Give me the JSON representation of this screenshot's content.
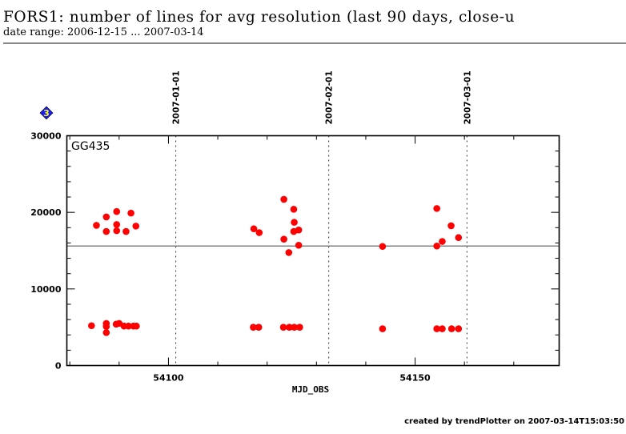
{
  "header": {
    "title": "FORS1: number of lines for avg resolution (last 90 days, close-u",
    "subtitle": "date range: 2006-12-15 ... 2007-03-14"
  },
  "badge": {
    "icon": "blue-diamond-icon",
    "label": "3",
    "fill": "#1a1aff",
    "text_color": "#ffff00"
  },
  "footer": {
    "text": "created by trendPlotter on 2007-03-14T15:03:50"
  },
  "chart_data": {
    "type": "scatter",
    "title": "FORS1: number of lines for avg resolution (last 90 days, close-u",
    "xlabel": "MJD_OBS",
    "ylabel": "",
    "xlim": [
      54079.4,
      54179.2
    ],
    "ylim": [
      0,
      30000
    ],
    "x_ticks": [
      54100,
      54150
    ],
    "x_tick_labels": [
      "54100",
      "54150"
    ],
    "x_minor_step": 10,
    "y_ticks": [
      0,
      10000,
      20000,
      30000
    ],
    "y_tick_labels": [
      "0",
      "10000",
      "20000",
      "30000"
    ],
    "y_minor_step": 2000,
    "grid": false,
    "legend": "top-left",
    "series_label": "GG435",
    "point_color": "#ff0000",
    "reference_line": {
      "y": 15600,
      "color": "#808080"
    },
    "date_markers": [
      {
        "label": "2007-01-01",
        "x": 54101.5
      },
      {
        "label": "2007-02-01",
        "x": 54132.5
      },
      {
        "label": "2007-03-01",
        "x": 54160.5
      }
    ],
    "series": [
      {
        "name": "GG435",
        "points": [
          [
            54085.4,
            18300
          ],
          [
            54087.4,
            19400
          ],
          [
            54087.4,
            17500
          ],
          [
            54089.5,
            20100
          ],
          [
            54089.5,
            18400
          ],
          [
            54089.5,
            17600
          ],
          [
            54091.4,
            17500
          ],
          [
            54092.4,
            19900
          ],
          [
            54093.4,
            18200
          ],
          [
            54084.4,
            5200
          ],
          [
            54087.4,
            5500
          ],
          [
            54087.4,
            5100
          ],
          [
            54087.4,
            4300
          ],
          [
            54089.4,
            5400
          ],
          [
            54090.0,
            5500
          ],
          [
            54091.0,
            5150
          ],
          [
            54091.9,
            5150
          ],
          [
            54092.9,
            5150
          ],
          [
            54093.5,
            5150
          ],
          [
            54117.3,
            17850
          ],
          [
            54118.4,
            17350
          ],
          [
            54123.4,
            21700
          ],
          [
            54125.4,
            20400
          ],
          [
            54125.5,
            18700
          ],
          [
            54125.4,
            17500
          ],
          [
            54126.4,
            17700
          ],
          [
            54123.4,
            16500
          ],
          [
            54126.4,
            15700
          ],
          [
            54124.4,
            14750
          ],
          [
            54117.2,
            5000
          ],
          [
            54118.3,
            5000
          ],
          [
            54123.3,
            5000
          ],
          [
            54124.5,
            5000
          ],
          [
            54125.5,
            5000
          ],
          [
            54126.6,
            5000
          ],
          [
            54143.4,
            15550
          ],
          [
            54154.4,
            20500
          ],
          [
            54157.3,
            18250
          ],
          [
            54158.8,
            16700
          ],
          [
            54155.5,
            16200
          ],
          [
            54154.4,
            15600
          ],
          [
            54143.4,
            4800
          ],
          [
            54154.4,
            4800
          ],
          [
            54155.5,
            4800
          ],
          [
            54157.4,
            4800
          ],
          [
            54158.8,
            4800
          ]
        ]
      }
    ]
  }
}
